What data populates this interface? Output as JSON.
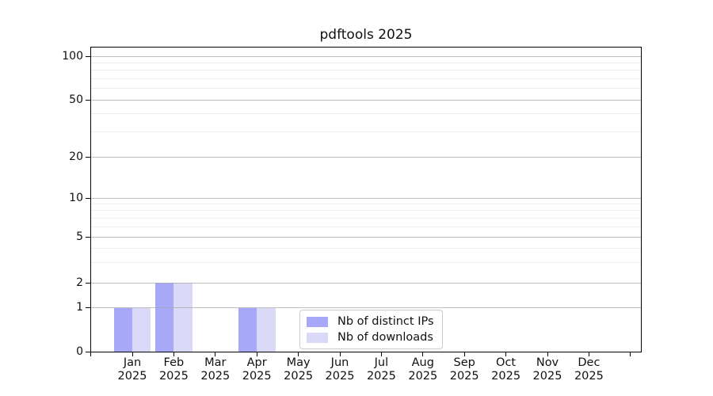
{
  "chart_data": {
    "type": "bar",
    "title": "pdftools 2025",
    "categories": [
      "Jan",
      "Feb",
      "Mar",
      "Apr",
      "May",
      "Jun",
      "Jul",
      "Aug",
      "Sep",
      "Oct",
      "Nov",
      "Dec"
    ],
    "category_year": "2025",
    "series": [
      {
        "name": "Nb of distinct IPs",
        "color": "#a8a8f8",
        "values": [
          1,
          2,
          0,
          1,
          0,
          0,
          0,
          0,
          0,
          0,
          0,
          0
        ]
      },
      {
        "name": "Nb of downloads",
        "color": "#dadaf8",
        "values": [
          1,
          2,
          0,
          1,
          0,
          0,
          0,
          0,
          0,
          0,
          0,
          0
        ]
      }
    ],
    "xlabel": "",
    "ylabel": "",
    "yscale": "symlog",
    "ylim": [
      0,
      115
    ],
    "yticks": [
      0,
      1,
      2,
      5,
      10,
      20,
      50,
      100
    ],
    "minor_yticks": [
      3,
      4,
      6,
      7,
      8,
      9,
      30,
      40,
      60,
      70,
      80,
      90
    ],
    "grid": true,
    "legend_position": "lower-center"
  },
  "colors": {
    "background": "#ffffff",
    "axis": "#000000",
    "major_grid": "#a8a8a8",
    "minor_grid": "#d2d2d2",
    "legend_border": "#cccccc"
  }
}
